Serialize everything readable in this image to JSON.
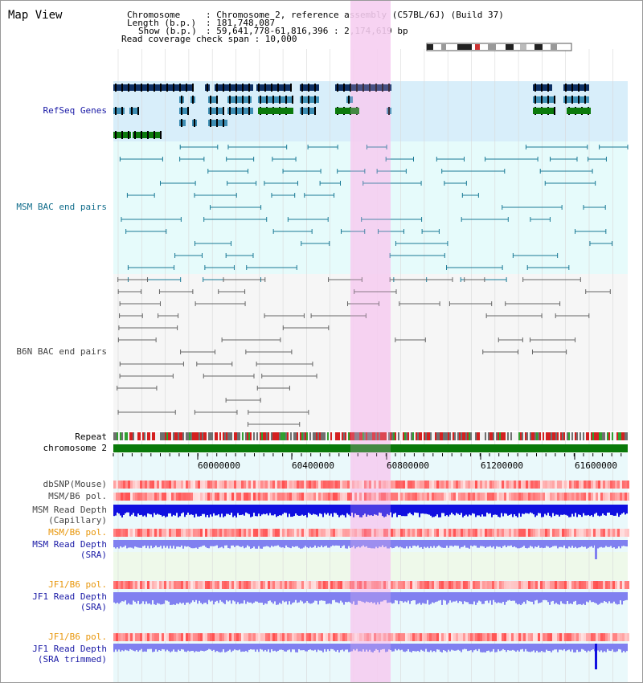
{
  "title": "Map View",
  "header": {
    "chromosome_key": "Chromosome",
    "chromosome_val": ": Chromosome 2, reference assembly (C57BL/6J) (Build 37)",
    "length_key": "Length (b.p.)",
    "length_val": ": 181,748,087",
    "show_key": "Show (b.p.)",
    "show_val": ": 59,641,778-61,816,396 : 2,174,619 bp",
    "coverage": "Read coverage check span : 10,000"
  },
  "tracks": {
    "refseq": "RefSeq Genes",
    "msm_bac": "MSM BAC end pairs",
    "b6n_bac": "B6N BAC end pairs",
    "repeat": "Repeat",
    "chromosome": "chromosome 2",
    "dbsnp": "dbSNP(Mouse)",
    "msm_b6_pol": "MSM/B6 pol.",
    "msm_read_depth_cap_1": "MSM Read Depth",
    "msm_read_depth_cap_2": "(Capillary)",
    "msm_b6_pol_2": "MSM/B6 pol.",
    "msm_read_depth_sra_1": "MSM Read Depth",
    "msm_read_depth_sra_2": "(SRA)",
    "jf1_b6_pol": "JF1/B6 pol.",
    "jf1_read_depth_1": "JF1 Read Depth",
    "jf1_read_depth_2": "(SRA)",
    "jf1_b6_pol_2": "JF1/B6 pol.",
    "jf1_read_depth_trim_1": "JF1 Read Depth",
    "jf1_read_depth_trim_2": "(SRA trimmed)"
  },
  "axis": {
    "ticks": [
      "60000000",
      "60400000",
      "60800000",
      "61200000",
      "61600000"
    ]
  },
  "colors": {
    "highlight": "#f7d6f2",
    "refseq_bg": "#d8eefa",
    "bac_bg": "#e6fbfb",
    "gene_dark": "#0d2f63",
    "gene_mid": "#3f8fb5",
    "gene_green": "#0c7a0c",
    "bac_teal": "#1a7a96",
    "chromosome_green": "#0a7a0a",
    "depth_blue": "#1010e0",
    "depth_light": "#8080f0"
  }
}
